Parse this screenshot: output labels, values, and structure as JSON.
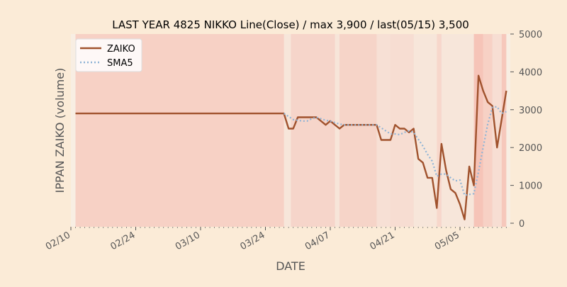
{
  "chart_data": {
    "type": "line",
    "title": "LAST YEAR 4825 NIKKO Line(Close) / max 3,900 / last(05/15) 3,500",
    "xlabel": "DATE",
    "ylabel": "IPPAN ZAIKO (volume)",
    "ylim": [
      0,
      5000
    ],
    "yticks": [
      0,
      1000,
      2000,
      3000,
      4000,
      5000
    ],
    "y_tick_labels": [
      "0",
      "1000",
      "2000",
      "3000",
      "4000",
      "5000"
    ],
    "x_tick_labels": [
      "02/10",
      "02/24",
      "03/10",
      "03/24",
      "04/07",
      "04/21",
      "05/05"
    ],
    "legend": {
      "position": "top-left",
      "entries": [
        "ZAIKO",
        "SMA5"
      ]
    },
    "colors": {
      "zaiko": "#a0522d",
      "sma5": "#8fb4d6",
      "background": "#fbebd7",
      "band": "#f4a296"
    },
    "series": [
      {
        "name": "ZAIKO",
        "style": "solid",
        "points": [
          [
            1,
            2900
          ],
          [
            46,
            2900
          ],
          [
            47,
            2500
          ],
          [
            48,
            2500
          ],
          [
            49,
            2800
          ],
          [
            53,
            2800
          ],
          [
            55,
            2600
          ],
          [
            56,
            2700
          ],
          [
            58,
            2500
          ],
          [
            59,
            2600
          ],
          [
            66,
            2600
          ],
          [
            67,
            2200
          ],
          [
            69,
            2200
          ],
          [
            70,
            2600
          ],
          [
            71,
            2500
          ],
          [
            72,
            2500
          ],
          [
            73,
            2400
          ],
          [
            74,
            2500
          ],
          [
            75,
            1700
          ],
          [
            76,
            1600
          ],
          [
            77,
            1200
          ],
          [
            78,
            1200
          ],
          [
            79,
            400
          ],
          [
            80,
            2100
          ],
          [
            81,
            1400
          ],
          [
            82,
            900
          ],
          [
            83,
            800
          ],
          [
            84,
            500
          ],
          [
            85,
            100
          ],
          [
            86,
            1500
          ],
          [
            87,
            1000
          ],
          [
            88,
            3900
          ],
          [
            89,
            3500
          ],
          [
            90,
            3200
          ],
          [
            91,
            3100
          ],
          [
            92,
            2000
          ],
          [
            94,
            3500
          ]
        ]
      },
      {
        "name": "SMA5",
        "style": "dotted",
        "points": [
          [
            46,
            2900
          ],
          [
            47,
            2820
          ],
          [
            48,
            2740
          ],
          [
            49,
            2720
          ],
          [
            50,
            2700
          ],
          [
            51,
            2700
          ],
          [
            52,
            2760
          ],
          [
            53,
            2800
          ],
          [
            54,
            2760
          ],
          [
            55,
            2720
          ],
          [
            56,
            2700
          ],
          [
            57,
            2660
          ],
          [
            58,
            2620
          ],
          [
            59,
            2600
          ],
          [
            60,
            2600
          ],
          [
            61,
            2600
          ],
          [
            66,
            2600
          ],
          [
            67,
            2520
          ],
          [
            68,
            2440
          ],
          [
            69,
            2360
          ],
          [
            70,
            2360
          ],
          [
            71,
            2340
          ],
          [
            72,
            2400
          ],
          [
            73,
            2440
          ],
          [
            74,
            2400
          ],
          [
            75,
            2220
          ],
          [
            76,
            2040
          ],
          [
            77,
            1820
          ],
          [
            78,
            1640
          ],
          [
            79,
            1240
          ],
          [
            80,
            1300
          ],
          [
            81,
            1300
          ],
          [
            82,
            1200
          ],
          [
            83,
            1120
          ],
          [
            84,
            1140
          ],
          [
            85,
            740
          ],
          [
            86,
            760
          ],
          [
            87,
            780
          ],
          [
            88,
            1360
          ],
          [
            89,
            2000
          ],
          [
            90,
            2620
          ],
          [
            91,
            3060
          ],
          [
            92,
            3080
          ],
          [
            93,
            2900
          ],
          [
            94,
            2950
          ]
        ]
      }
    ],
    "x_domain": [
      0,
      95
    ],
    "x_tick_positions": [
      0,
      14,
      28,
      42,
      56,
      70,
      84
    ],
    "bands": [
      {
        "x0": 1,
        "x1": 46,
        "opacity": 0.38
      },
      {
        "x0": 46,
        "x1": 47.5,
        "opacity": 0.1
      },
      {
        "x0": 47.5,
        "x1": 57,
        "opacity": 0.32
      },
      {
        "x0": 57,
        "x1": 58,
        "opacity": 0.12
      },
      {
        "x0": 58,
        "x1": 66,
        "opacity": 0.34
      },
      {
        "x0": 66,
        "x1": 69,
        "opacity": 0.18
      },
      {
        "x0": 69,
        "x1": 74,
        "opacity": 0.22
      },
      {
        "x0": 74,
        "x1": 79,
        "opacity": 0.1
      },
      {
        "x0": 79,
        "x1": 80,
        "opacity": 0.3
      },
      {
        "x0": 80,
        "x1": 87,
        "opacity": 0.1
      },
      {
        "x0": 87,
        "x1": 89,
        "opacity": 0.55
      },
      {
        "x0": 89,
        "x1": 91,
        "opacity": 0.38
      },
      {
        "x0": 91,
        "x1": 93,
        "opacity": 0.2
      },
      {
        "x0": 93,
        "x1": 94,
        "opacity": 0.5
      }
    ]
  }
}
